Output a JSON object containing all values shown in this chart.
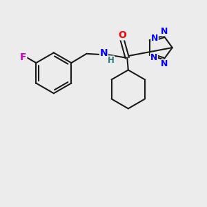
{
  "bg_color": "#ececec",
  "line_color": "#1a1a1a",
  "bond_width": 1.5,
  "atom_colors": {
    "F": "#cc00cc",
    "O": "#ff0000",
    "N": "#0000ff",
    "N_tetrazole_bottom": "#2d7a7a",
    "H": "#2d7a7a",
    "C": "#1a1a1a"
  },
  "font_size_atom": 10,
  "font_size_small": 8.5
}
